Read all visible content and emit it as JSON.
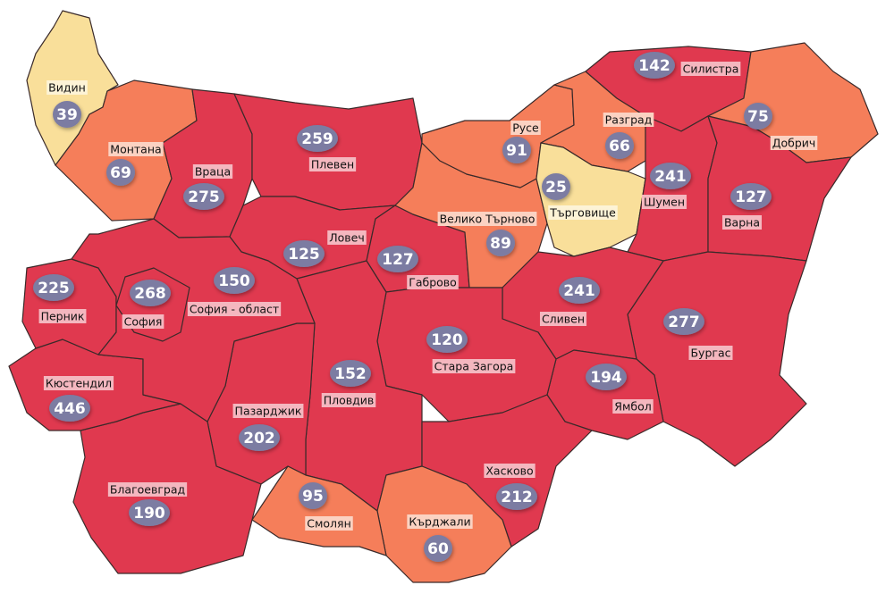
{
  "colors": {
    "high": "#e0394f",
    "medium": "#f57e5a",
    "low": "#f9df9a",
    "badge": "#7b7ca2",
    "label_bg_high": "#f4b7bf",
    "label_bg_medium": "#fbd2c2",
    "label_bg_low": "#fdf3d6"
  },
  "regions": [
    {
      "id": "vidin",
      "name": "Видин",
      "value": "39",
      "level": "low"
    },
    {
      "id": "montana",
      "name": "Монтана",
      "value": "69",
      "level": "medium"
    },
    {
      "id": "vratsa",
      "name": "Враца",
      "value": "275",
      "level": "high"
    },
    {
      "id": "pleven",
      "name": "Плевен",
      "value": "259",
      "level": "high"
    },
    {
      "id": "lovech",
      "name": "Ловеч",
      "value": "125",
      "level": "high"
    },
    {
      "id": "gabrovo",
      "name": "Габрово",
      "value": "127",
      "level": "high"
    },
    {
      "id": "veliko-tarnovo",
      "name": "Велико Търново",
      "value": "89",
      "level": "medium"
    },
    {
      "id": "ruse",
      "name": "Русе",
      "value": "91",
      "level": "medium"
    },
    {
      "id": "razgrad",
      "name": "Разград",
      "value": "66",
      "level": "medium"
    },
    {
      "id": "targovishte",
      "name": "Търговище",
      "value": "25",
      "level": "low"
    },
    {
      "id": "silistra",
      "name": "Силистра",
      "value": "142",
      "level": "high"
    },
    {
      "id": "dobrich",
      "name": "Добрич",
      "value": "75",
      "level": "medium"
    },
    {
      "id": "shumen",
      "name": "Шумен",
      "value": "241",
      "level": "high"
    },
    {
      "id": "varna",
      "name": "Варна",
      "value": "127",
      "level": "high"
    },
    {
      "id": "burgas",
      "name": "Бургас",
      "value": "277",
      "level": "high"
    },
    {
      "id": "sliven",
      "name": "Сливен",
      "value": "241",
      "level": "high"
    },
    {
      "id": "yambol",
      "name": "Ямбол",
      "value": "194",
      "level": "high"
    },
    {
      "id": "stara-zagora",
      "name": "Стара Загора",
      "value": "120",
      "level": "high"
    },
    {
      "id": "plovdiv",
      "name": "Пловдив",
      "value": "152",
      "level": "high"
    },
    {
      "id": "pazardzhik",
      "name": "Пазарджик",
      "value": "202",
      "level": "high"
    },
    {
      "id": "blagoevgrad",
      "name": "Благоевград",
      "value": "190",
      "level": "high"
    },
    {
      "id": "kyustendil",
      "name": "Кюстендил",
      "value": "446",
      "level": "high"
    },
    {
      "id": "pernik",
      "name": "Перник",
      "value": "225",
      "level": "high"
    },
    {
      "id": "sofia-oblast",
      "name": "София - област",
      "value": "150",
      "level": "high"
    },
    {
      "id": "sofia-city",
      "name": "София",
      "value": "268",
      "level": "high"
    },
    {
      "id": "haskovo",
      "name": "Хасково",
      "value": "212",
      "level": "high"
    },
    {
      "id": "kardzhali",
      "name": "Кърджали",
      "value": "60",
      "level": "medium"
    },
    {
      "id": "smolyan",
      "name": "Смолян",
      "value": "95",
      "level": "medium"
    }
  ]
}
